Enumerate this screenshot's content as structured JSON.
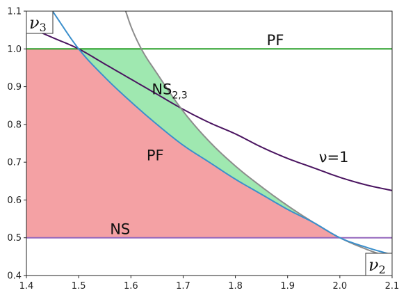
{
  "chart_data": {
    "type": "area",
    "xlim": [
      1.4,
      2.1
    ],
    "ylim": [
      0.4,
      1.1
    ],
    "xticks": [
      "1.4",
      "1.5",
      "1.6",
      "1.7",
      "1.8",
      "1.9",
      "2.0",
      "2.1"
    ],
    "yticks": [
      "0.4",
      "0.5",
      "0.6",
      "0.7",
      "0.8",
      "0.9",
      "1.0",
      "1.1"
    ],
    "xlabel": {
      "base": "ν",
      "sub": "2"
    },
    "ylabel": {
      "base": "ν",
      "sub": "3"
    },
    "grid": false,
    "colors": {
      "pf_curve": "#3b8fcc",
      "ns23_curve": "#8c8c8c",
      "nu1_curve": "#4a1460",
      "pf_line": "#2ca02c",
      "ns_line": "#9467bd",
      "red_fill": "#f4a1a4",
      "green_fill": "#9fe8b0"
    },
    "series": [
      {
        "id": "pf_curve",
        "x": [
          1.45,
          1.5,
          1.55,
          1.6,
          1.65,
          1.7,
          1.75,
          1.8,
          1.85,
          1.9,
          1.95,
          2.0,
          2.05,
          2.1
        ],
        "y": [
          1.1,
          1.0,
          0.925,
          0.86,
          0.8,
          0.745,
          0.7,
          0.655,
          0.615,
          0.575,
          0.54,
          0.5,
          0.475,
          0.455
        ]
      },
      {
        "id": "ns23_curve",
        "x": [
          1.59,
          1.6,
          1.62,
          1.65,
          1.7,
          1.75,
          1.8,
          1.85,
          1.9,
          1.95,
          2.0,
          2.05,
          2.1
        ],
        "y": [
          1.1,
          1.06,
          1.0,
          0.935,
          0.835,
          0.755,
          0.69,
          0.635,
          0.585,
          0.54,
          0.5,
          0.47,
          0.445
        ]
      },
      {
        "id": "nu1_curve",
        "x": [
          1.4,
          1.45,
          1.5,
          1.55,
          1.6,
          1.65,
          1.7,
          1.75,
          1.8,
          1.85,
          1.9,
          1.95,
          2.0,
          2.05,
          2.1
        ],
        "y": [
          1.06,
          1.03,
          1.0,
          0.96,
          0.92,
          0.88,
          0.84,
          0.805,
          0.775,
          0.74,
          0.71,
          0.685,
          0.66,
          0.64,
          0.625
        ]
      },
      {
        "id": "pf_line",
        "y": 1.0
      },
      {
        "id": "ns_line",
        "y": 0.5
      }
    ],
    "annotations": [
      {
        "id": "ann-pf-top",
        "text": "PF",
        "x": 1.86,
        "y": 1.01
      },
      {
        "id": "ann-ns23",
        "text": "NS",
        "sub": "2,3",
        "x": 1.64,
        "y": 0.88
      },
      {
        "id": "ann-nu1",
        "text": "ν=1",
        "x": 1.96,
        "y": 0.7
      },
      {
        "id": "ann-pf-mid",
        "text": "PF",
        "x": 1.63,
        "y": 0.705
      },
      {
        "id": "ann-ns",
        "text": "NS",
        "x": 1.56,
        "y": 0.51
      }
    ]
  }
}
